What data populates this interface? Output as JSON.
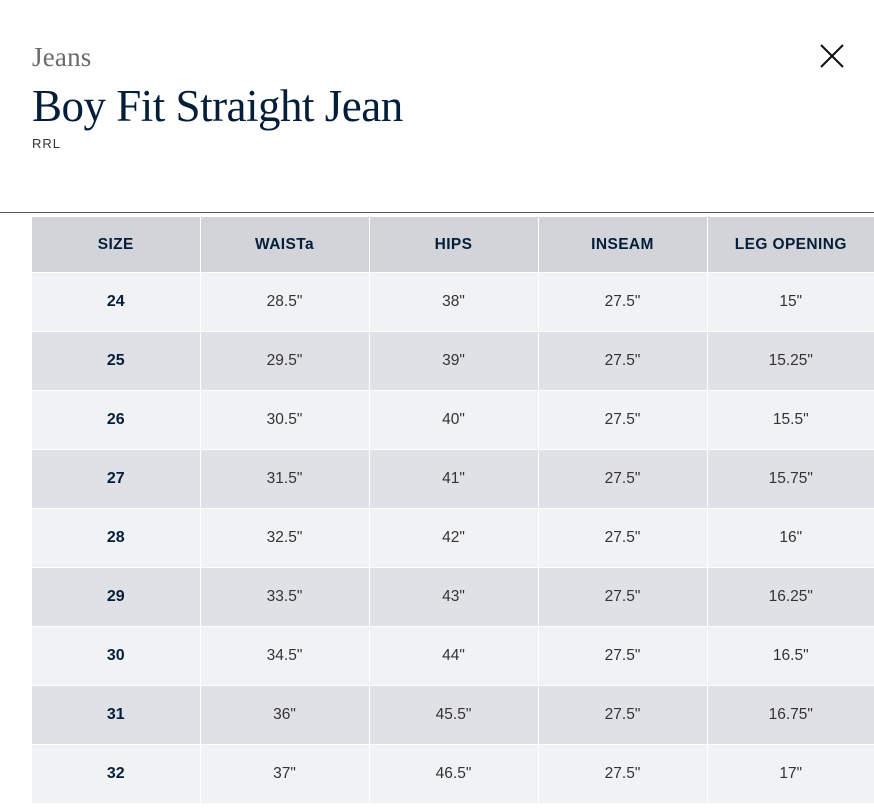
{
  "header": {
    "category": "Jeans",
    "title": "Boy Fit Straight Jean",
    "brand": "RRL",
    "close_icon": "close-icon"
  },
  "colors": {
    "title": "#041e3a",
    "header_row": "#d3d4d9",
    "row_light": "#f1f2f4",
    "row_dark": "#e0e1e6"
  },
  "table": {
    "columns": [
      "SIZE",
      "WAISTa",
      "HIPS",
      "INSEAM",
      "LEG OPENING"
    ],
    "rows": [
      [
        "24",
        "28.5\"",
        "38\"",
        "27.5\"",
        "15\""
      ],
      [
        "25",
        "29.5\"",
        "39\"",
        "27.5\"",
        "15.25\""
      ],
      [
        "26",
        "30.5\"",
        "40\"",
        "27.5\"",
        "15.5\""
      ],
      [
        "27",
        "31.5\"",
        "41\"",
        "27.5\"",
        "15.75\""
      ],
      [
        "28",
        "32.5\"",
        "42\"",
        "27.5\"",
        "16\""
      ],
      [
        "29",
        "33.5\"",
        "43\"",
        "27.5\"",
        "16.25\""
      ],
      [
        "30",
        "34.5\"",
        "44\"",
        "27.5\"",
        "16.5\""
      ],
      [
        "31",
        "36\"",
        "45.5\"",
        "27.5\"",
        "16.75\""
      ],
      [
        "32",
        "37\"",
        "46.5\"",
        "27.5\"",
        "17\""
      ]
    ]
  }
}
